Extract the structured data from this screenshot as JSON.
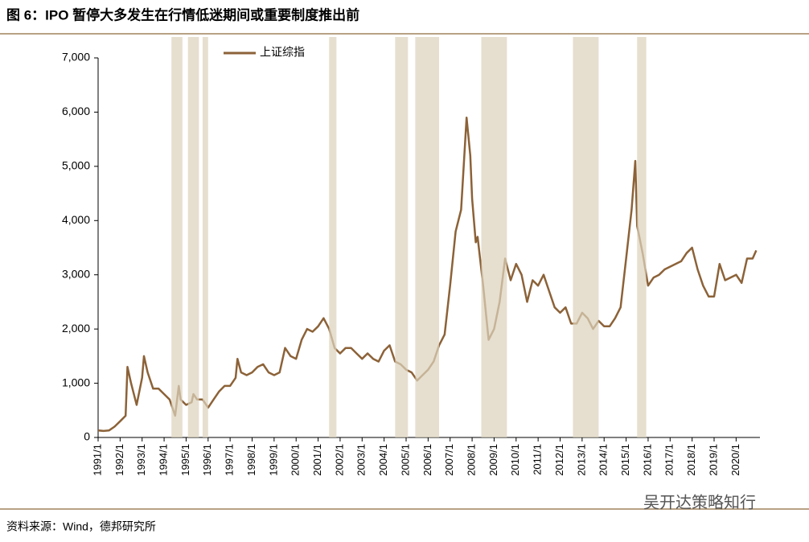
{
  "chart_data": {
    "type": "line",
    "title": "图 6：IPO 暂停大多发生在行情低迷期间或重要制度推出前",
    "source": "资料来源：Wind，德邦研究所",
    "watermark": "吴开达策略知行",
    "x": [
      "1991/1",
      "1991/4",
      "1991/7",
      "1991/10",
      "1992/1",
      "1992/4",
      "1992/5",
      "1992/7",
      "1992/10",
      "1993/1",
      "1993/2",
      "1993/4",
      "1993/7",
      "1993/10",
      "1994/1",
      "1994/4",
      "1994/7",
      "1994/9",
      "1994/10",
      "1995/1",
      "1995/4",
      "1995/5",
      "1995/7",
      "1995/10",
      "1996/1",
      "1996/4",
      "1996/7",
      "1996/10",
      "1997/1",
      "1997/4",
      "1997/5",
      "1997/7",
      "1997/10",
      "1998/1",
      "1998/4",
      "1998/7",
      "1998/10",
      "1999/1",
      "1999/4",
      "1999/7",
      "1999/10",
      "2000/1",
      "2000/4",
      "2000/7",
      "2000/10",
      "2001/1",
      "2001/4",
      "2001/7",
      "2001/10",
      "2002/1",
      "2002/4",
      "2002/7",
      "2002/10",
      "2003/1",
      "2003/4",
      "2003/7",
      "2003/10",
      "2004/1",
      "2004/4",
      "2004/7",
      "2004/10",
      "2005/1",
      "2005/4",
      "2005/7",
      "2005/10",
      "2006/1",
      "2006/4",
      "2006/7",
      "2006/10",
      "2007/1",
      "2007/4",
      "2007/7",
      "2007/10",
      "2007/12",
      "2008/1",
      "2008/3",
      "2008/4",
      "2008/7",
      "2008/10",
      "2009/1",
      "2009/4",
      "2009/7",
      "2009/10",
      "2010/1",
      "2010/4",
      "2010/7",
      "2010/10",
      "2011/1",
      "2011/4",
      "2011/7",
      "2011/10",
      "2012/1",
      "2012/4",
      "2012/7",
      "2012/10",
      "2013/1",
      "2013/4",
      "2013/7",
      "2013/10",
      "2014/1",
      "2014/4",
      "2014/7",
      "2014/10",
      "2015/1",
      "2015/4",
      "2015/6",
      "2015/7",
      "2015/10",
      "2016/1",
      "2016/4",
      "2016/7",
      "2016/10",
      "2017/1",
      "2017/4",
      "2017/7",
      "2017/10",
      "2018/1",
      "2018/4",
      "2018/7",
      "2018/10",
      "2019/1",
      "2019/4",
      "2019/7",
      "2019/10",
      "2020/1",
      "2020/4",
      "2020/7",
      "2020/10",
      "2020/12"
    ],
    "series": [
      {
        "name": "上证综指",
        "color": "#8c6238",
        "values": [
          130,
          120,
          130,
          200,
          300,
          400,
          1300,
          1000,
          600,
          1100,
          1500,
          1200,
          900,
          900,
          800,
          700,
          400,
          950,
          700,
          600,
          650,
          800,
          700,
          700,
          550,
          700,
          850,
          950,
          950,
          1100,
          1450,
          1200,
          1150,
          1200,
          1300,
          1350,
          1200,
          1150,
          1200,
          1650,
          1500,
          1450,
          1800,
          2000,
          1950,
          2050,
          2200,
          2000,
          1650,
          1550,
          1650,
          1650,
          1550,
          1450,
          1550,
          1450,
          1400,
          1600,
          1700,
          1400,
          1350,
          1250,
          1200,
          1050,
          1150,
          1250,
          1400,
          1700,
          1900,
          2800,
          3800,
          4200,
          5900,
          5200,
          4400,
          3600,
          3700,
          2800,
          1800,
          2000,
          2500,
          3300,
          2900,
          3200,
          3000,
          2500,
          2900,
          2800,
          3000,
          2700,
          2400,
          2300,
          2400,
          2100,
          2100,
          2300,
          2200,
          2000,
          2150,
          2050,
          2050,
          2200,
          2400,
          3300,
          4200,
          5100,
          3900,
          3400,
          2800,
          2950,
          3000,
          3100,
          3150,
          3200,
          3250,
          3400,
          3500,
          3100,
          2800,
          2600,
          2600,
          3200,
          2900,
          2950,
          3000,
          2850,
          3300,
          3300,
          3450
        ]
      }
    ],
    "shaded_periods": [
      {
        "start": "1994/5",
        "end": "1994/11"
      },
      {
        "start": "1995/2",
        "end": "1995/8"
      },
      {
        "start": "1995/10",
        "end": "1996/1"
      },
      {
        "start": "2001/7",
        "end": "2001/11"
      },
      {
        "start": "2004/7",
        "end": "2005/2"
      },
      {
        "start": "2005/6",
        "end": "2006/7"
      },
      {
        "start": "2008/6",
        "end": "2009/8"
      },
      {
        "start": "2012/8",
        "end": "2013/10"
      },
      {
        "start": "2015/7",
        "end": "2015/12"
      }
    ],
    "shade_color": "#ddd2bc",
    "xlim": [
      "1991/1",
      "2021/2"
    ],
    "xticks": [
      "1991/1",
      "1992/1",
      "1993/1",
      "1994/1",
      "1995/1",
      "1996/1",
      "1997/1",
      "1998/1",
      "1999/1",
      "2000/1",
      "2001/1",
      "2002/1",
      "2003/1",
      "2004/1",
      "2005/1",
      "2006/1",
      "2007/1",
      "2008/1",
      "2009/1",
      "2010/1",
      "2011/1",
      "2012/1",
      "2013/1",
      "2014/1",
      "2015/1",
      "2016/1",
      "2017/1",
      "2018/1",
      "2019/1",
      "2020/1"
    ],
    "ylim": [
      0,
      7000
    ],
    "yticks": [
      0,
      {
        "value": 1000,
        "label": "1,000"
      },
      {
        "value": 2000,
        "label": "2,000"
      },
      {
        "value": 3000,
        "label": "3,000"
      },
      {
        "value": 4000,
        "label": "4,000"
      },
      {
        "value": 5000,
        "label": "5,000"
      },
      {
        "value": 6000,
        "label": "6,000"
      },
      {
        "value": 7000,
        "label": "7,000"
      }
    ]
  }
}
